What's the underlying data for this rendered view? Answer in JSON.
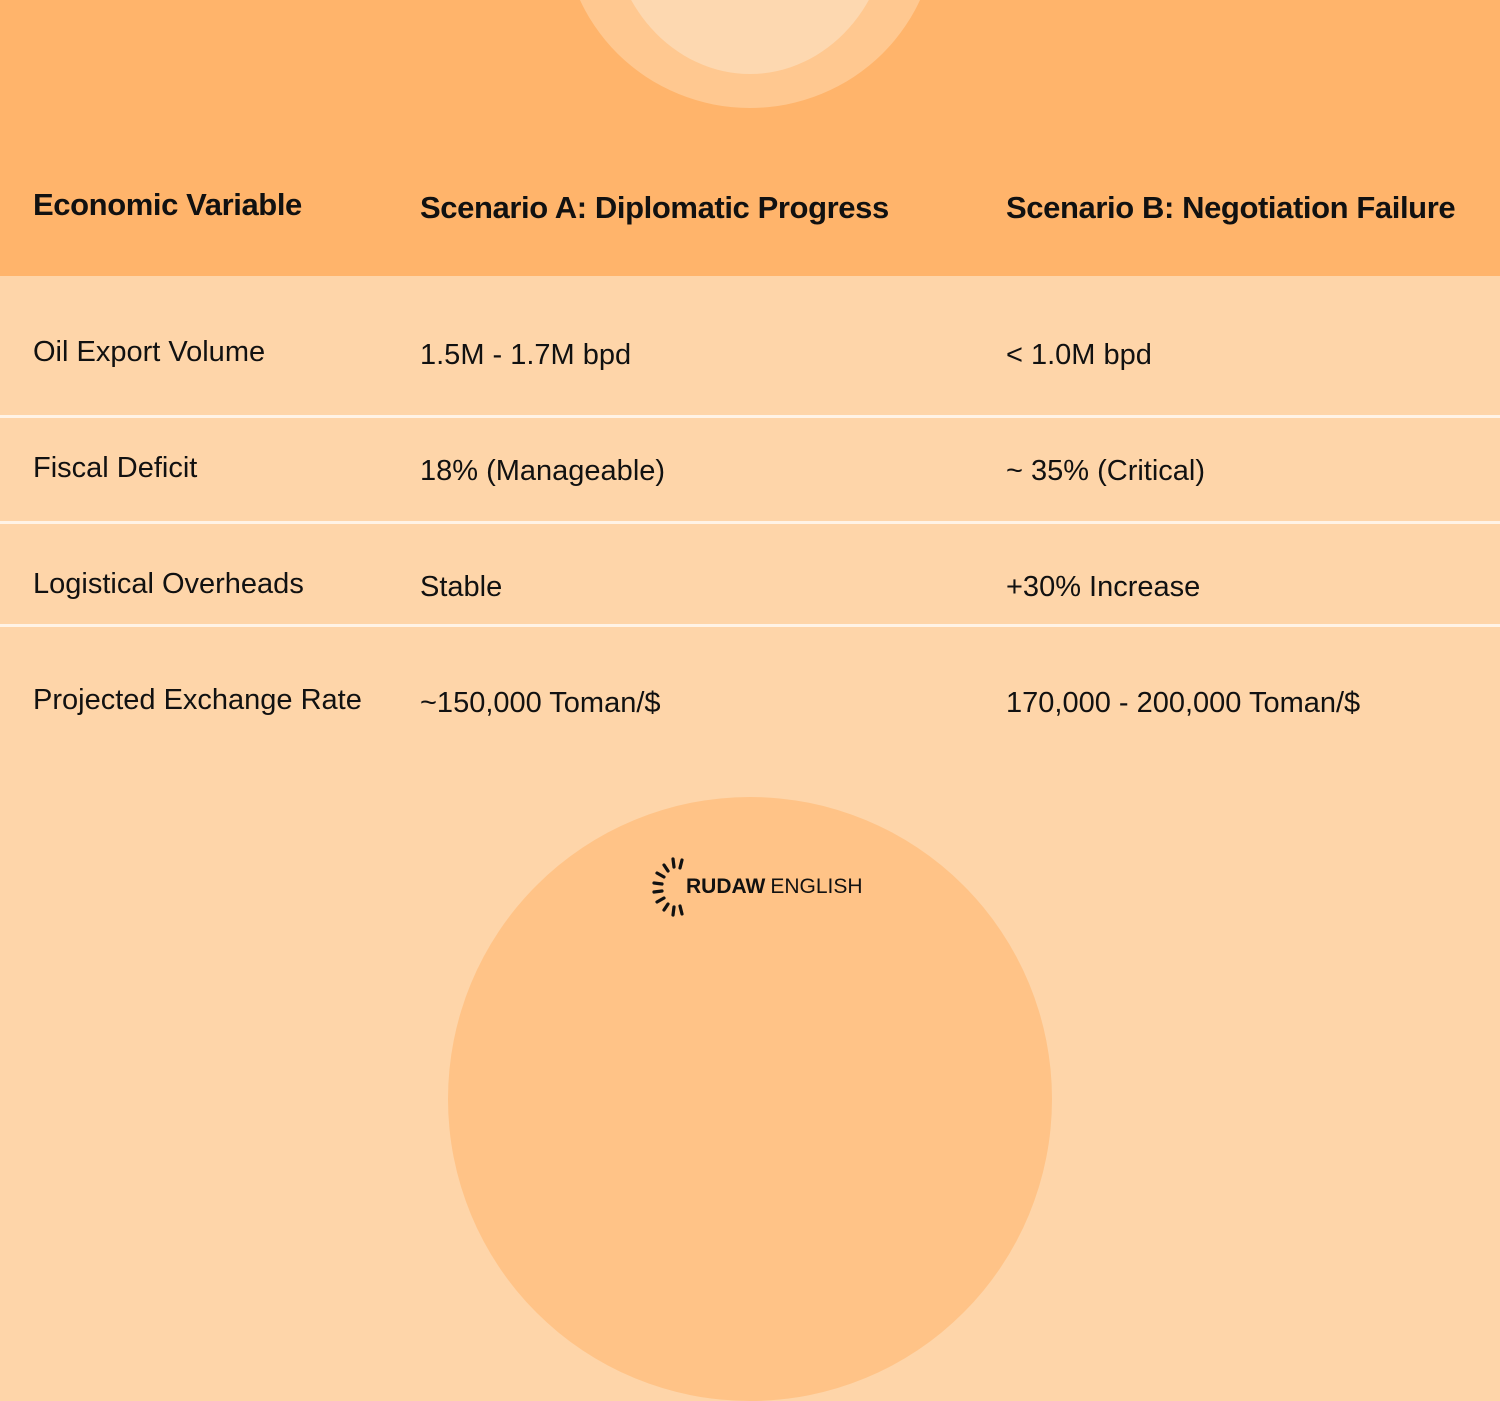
{
  "table": {
    "headers": [
      "Economic Variable",
      "Scenario A: Diplomatic Progress",
      "Scenario B: Negotiation Failure"
    ],
    "rows": [
      [
        "Oil Export Volume",
        "1.5M - 1.7M bpd",
        "< 1.0M bpd"
      ],
      [
        "Fiscal Deficit",
        "18% (Manageable)",
        "~ 35% (Critical)"
      ],
      [
        "Logistical Overheads",
        "Stable",
        "+30% Increase"
      ],
      [
        "Projected Exchange Rate",
        "~150,000 Toman/$",
        "170,000 - 200,000 Toman/$"
      ]
    ]
  },
  "branding": {
    "logo_bold": "RUDAW",
    "logo_light": "ENGLISH"
  },
  "colors": {
    "header_band": "#ffb46b",
    "body_background": "#fed5a9",
    "divider": "#fff3e6",
    "text": "#111111"
  }
}
